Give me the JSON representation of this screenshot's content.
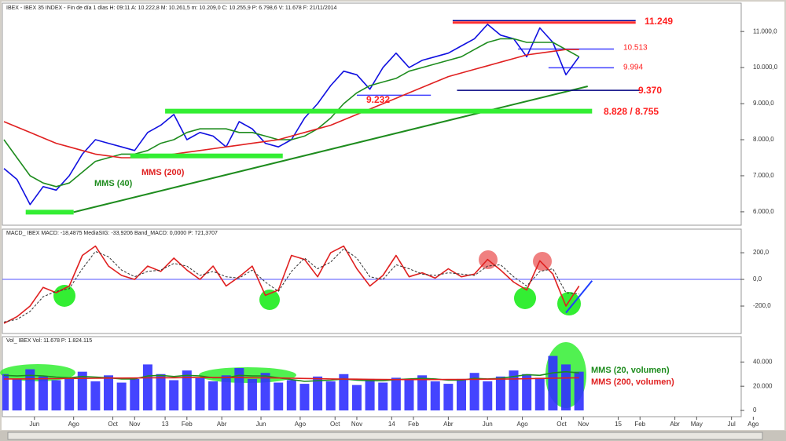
{
  "chart_data": [
    {
      "type": "line",
      "title": "IBEX - IBEX 35 INDEX - Fin de día 1 días H: 09:11 A: 10.222,8 M: 10.261,5 m: 10.209,0 C: 10.255,9 P: 6.798,6 V: 11.678 F: 21/11/2014",
      "x": [
        0,
        3,
        6,
        9,
        12,
        15,
        18,
        21,
        24,
        27,
        30,
        33,
        36,
        39,
        42,
        45,
        48,
        51,
        54,
        57,
        60,
        63,
        66,
        69,
        72,
        75,
        78,
        81,
        84,
        87,
        90,
        93,
        96,
        99,
        102,
        105,
        108,
        111,
        114,
        117,
        120,
        123,
        126,
        129,
        132
      ],
      "xlim": [
        0,
        175
      ],
      "ylim": [
        5650,
        11700
      ],
      "yticks": [
        {
          "value": 6000,
          "label": "6.000,0"
        },
        {
          "value": 7000,
          "label": "7.000,0"
        },
        {
          "value": 8000,
          "label": "8.000,0"
        },
        {
          "value": 9000,
          "label": "9.000,0"
        },
        {
          "value": 10000,
          "label": "10.000,0"
        },
        {
          "value": 11000,
          "label": "11.000,0"
        }
      ],
      "series": [
        {
          "color": "#1010e0",
          "values": [
            7200,
            6900,
            6200,
            6700,
            6600,
            7000,
            7600,
            8000,
            7900,
            7800,
            7700,
            8200,
            8400,
            8700,
            8000,
            8200,
            8100,
            7800,
            8500,
            8300,
            7900,
            7800,
            8000,
            8600,
            9000,
            9500,
            9900,
            9800,
            9400,
            10000,
            10400,
            10000,
            10200,
            10300,
            10400,
            10600,
            10800,
            11200,
            10900,
            10800,
            10300,
            11100,
            10700,
            9800,
            10300
          ]
        },
        {
          "name": "MMS (40)",
          "color": "#1e8c1e",
          "values": [
            8000,
            7500,
            7000,
            6800,
            6700,
            6800,
            7100,
            7400,
            7500,
            7600,
            7600,
            7700,
            7900,
            8000,
            8200,
            8300,
            8300,
            8300,
            8200,
            8200,
            8100,
            8000,
            8000,
            8100,
            8300,
            8600,
            9000,
            9300,
            9500,
            9600,
            9700,
            9900,
            10000,
            10100,
            10200,
            10300,
            10500,
            10700,
            10800,
            10800,
            10700,
            10700,
            10700,
            10500,
            10300
          ]
        },
        {
          "name": "MMS (200)",
          "color": "#e02020",
          "values": [
            8500,
            8350,
            8200,
            8050,
            7900,
            7800,
            7700,
            7600,
            7550,
            7500,
            7500,
            7500,
            7550,
            7600,
            7650,
            7700,
            7750,
            7800,
            7850,
            7900,
            7950,
            8000,
            8100,
            8200,
            8300,
            8400,
            8550,
            8700,
            8850,
            9000,
            9150,
            9300,
            9450,
            9600,
            9750,
            9850,
            9950,
            10050,
            10150,
            10250,
            10350,
            10400,
            10450,
            10500,
            10500
          ]
        }
      ],
      "levels": [
        {
          "label": "11.249",
          "value": 11249,
          "x": [
            103,
            145
          ],
          "color": "#ff3030"
        },
        {
          "label": "10.513",
          "value": 10513,
          "x": [
            118,
            140
          ],
          "color": "#4040ff"
        },
        {
          "label": "9.994",
          "value": 9994,
          "x": [
            125,
            140
          ],
          "color": "#4040ff"
        },
        {
          "label": "9.370",
          "value": 9370,
          "x": [
            104,
            146
          ],
          "color": "#000080"
        },
        {
          "label": "9.232",
          "value": 9232,
          "x": [
            81,
            98
          ],
          "color": "#4040ff"
        }
      ],
      "bands": [
        {
          "label": "8.828 / 8.755",
          "values": [
            8828,
            8755
          ],
          "x": [
            37,
            135
          ],
          "color": "#33ee33"
        },
        {
          "values": [
            6050,
            5930
          ],
          "x": [
            5,
            16
          ],
          "color": "#33ee33"
        },
        {
          "values": [
            7610,
            7490
          ],
          "x": [
            29,
            64
          ],
          "color": "#33ee33"
        }
      ],
      "trendline": {
        "x": [
          16,
          134
        ],
        "y": [
          5990,
          9480
        ],
        "color": "#1e8c1e"
      }
    },
    {
      "type": "line",
      "title": "MACD_ IBEX MACD: -18,4875 MediaSIG: -33,9206 Band_MACD: 0,0000 P: 721,3707",
      "x": [
        0,
        3,
        6,
        9,
        12,
        15,
        18,
        21,
        24,
        27,
        30,
        33,
        36,
        39,
        42,
        45,
        48,
        51,
        54,
        57,
        60,
        63,
        66,
        69,
        72,
        75,
        78,
        81,
        84,
        87,
        90,
        93,
        96,
        99,
        102,
        105,
        108,
        111,
        114,
        117,
        120,
        123,
        126,
        129,
        132
      ],
      "xlim": [
        0,
        175
      ],
      "ylim": [
        -400,
        330
      ],
      "yticks": [
        {
          "value": -200,
          "label": "-200,0"
        },
        {
          "value": 0,
          "label": "0,0"
        },
        {
          "value": 200,
          "label": "200,0"
        }
      ],
      "reference_line": {
        "value": 0,
        "color": "#5050ff"
      },
      "series": [
        {
          "color": "#e02020",
          "values": [
            -330,
            -280,
            -200,
            -60,
            -100,
            -50,
            180,
            250,
            100,
            30,
            0,
            100,
            60,
            160,
            70,
            0,
            100,
            -50,
            20,
            100,
            -120,
            -80,
            180,
            150,
            20,
            200,
            250,
            80,
            -50,
            30,
            180,
            20,
            50,
            10,
            80,
            20,
            40,
            150,
            70,
            -20,
            -80,
            140,
            40,
            -200,
            -50
          ]
        },
        {
          "color": "#303030",
          "dashed": true,
          "values": [
            -320,
            -300,
            -240,
            -130,
            -90,
            -70,
            80,
            210,
            170,
            70,
            20,
            60,
            70,
            120,
            100,
            30,
            60,
            20,
            10,
            70,
            -20,
            -90,
            60,
            160,
            80,
            130,
            230,
            160,
            20,
            0,
            110,
            80,
            40,
            30,
            50,
            40,
            30,
            100,
            110,
            20,
            -50,
            60,
            80,
            -100,
            -110
          ]
        }
      ],
      "trendline": {
        "x": [
          129,
          135
        ],
        "y": [
          -250,
          -10
        ],
        "color": "#2040ff"
      }
    },
    {
      "type": "bar",
      "title": "Vol_ IBEX Vol: 11.678 P: 1.824.115",
      "x": [
        0,
        3,
        6,
        9,
        12,
        15,
        18,
        21,
        24,
        27,
        30,
        33,
        36,
        39,
        42,
        45,
        48,
        51,
        54,
        57,
        60,
        63,
        66,
        69,
        72,
        75,
        78,
        81,
        84,
        87,
        90,
        93,
        96,
        99,
        102,
        105,
        108,
        111,
        114,
        117,
        120,
        123,
        126,
        129,
        132
      ],
      "xlim": [
        0,
        175
      ],
      "xticks": [
        {
          "value": 7,
          "label": "Jun"
        },
        {
          "value": 16,
          "label": "Ago"
        },
        {
          "value": 25,
          "label": "Oct"
        },
        {
          "value": 30,
          "label": "Nov"
        },
        {
          "value": 37,
          "label": "13"
        },
        {
          "value": 42,
          "label": "Feb"
        },
        {
          "value": 50,
          "label": "Abr"
        },
        {
          "value": 59,
          "label": "Jun"
        },
        {
          "value": 68,
          "label": "Ago"
        },
        {
          "value": 76,
          "label": "Oct"
        },
        {
          "value": 81,
          "label": "Nov"
        },
        {
          "value": 89,
          "label": "14"
        },
        {
          "value": 94,
          "label": "Feb"
        },
        {
          "value": 102,
          "label": "Abr"
        },
        {
          "value": 111,
          "label": "Jun"
        },
        {
          "value": 119,
          "label": "Ago"
        },
        {
          "value": 128,
          "label": "Oct"
        },
        {
          "value": 133,
          "label": "Nov"
        },
        {
          "value": 141,
          "label": "15"
        },
        {
          "value": 146,
          "label": "Feb"
        },
        {
          "value": 154,
          "label": "Abr"
        },
        {
          "value": 159,
          "label": "May"
        },
        {
          "value": 167,
          "label": "Jul"
        },
        {
          "value": 172,
          "label": "Ago"
        }
      ],
      "ylim": [
        -4500,
        59000
      ],
      "yticks": [
        0,
        {
          "value": 20000,
          "label": "20.000"
        },
        {
          "value": 40000,
          "label": "40.000"
        }
      ],
      "series": [
        {
          "color": "#3030ff",
          "bars": true,
          "values": [
            30000,
            26000,
            34000,
            28000,
            25000,
            27000,
            32000,
            24000,
            29000,
            23000,
            26000,
            38000,
            30000,
            25000,
            33000,
            27000,
            24000,
            29000,
            35000,
            26000,
            31000,
            23000,
            25000,
            22000,
            28000,
            24000,
            30000,
            21000,
            26000,
            23000,
            27000,
            25000,
            29000,
            24000,
            22000,
            26000,
            31000,
            24000,
            28000,
            33000,
            30000,
            27000,
            45000,
            38000,
            32000
          ]
        },
        {
          "name": "MMS (20, volumen)",
          "color": "#1e8c1e",
          "values": [
            29000,
            28500,
            29000,
            28500,
            27500,
            27000,
            28000,
            27500,
            27000,
            26000,
            26000,
            28500,
            29000,
            28000,
            29000,
            28500,
            27000,
            27000,
            29000,
            28500,
            28500,
            27000,
            25500,
            24000,
            24500,
            25000,
            26000,
            25000,
            24500,
            24500,
            25500,
            26000,
            26500,
            26000,
            25000,
            25000,
            26500,
            26000,
            26500,
            28000,
            29500,
            29000,
            31000,
            32000,
            31000
          ]
        },
        {
          "name": "MMS (200, volumen)",
          "color": "#e02020",
          "values": [
            26000,
            26000,
            26100,
            26200,
            26300,
            26400,
            26500,
            26600,
            26700,
            26700,
            26800,
            26900,
            27000,
            27000,
            27100,
            27100,
            27200,
            27200,
            27100,
            27000,
            26900,
            26800,
            26600,
            26400,
            26200,
            26000,
            25900,
            25800,
            25700,
            25600,
            25500,
            25500,
            25500,
            25500,
            25600,
            25600,
            25700,
            25800,
            25900,
            26000,
            26200,
            26400,
            26600,
            26800,
            27000
          ]
        }
      ]
    }
  ]
}
